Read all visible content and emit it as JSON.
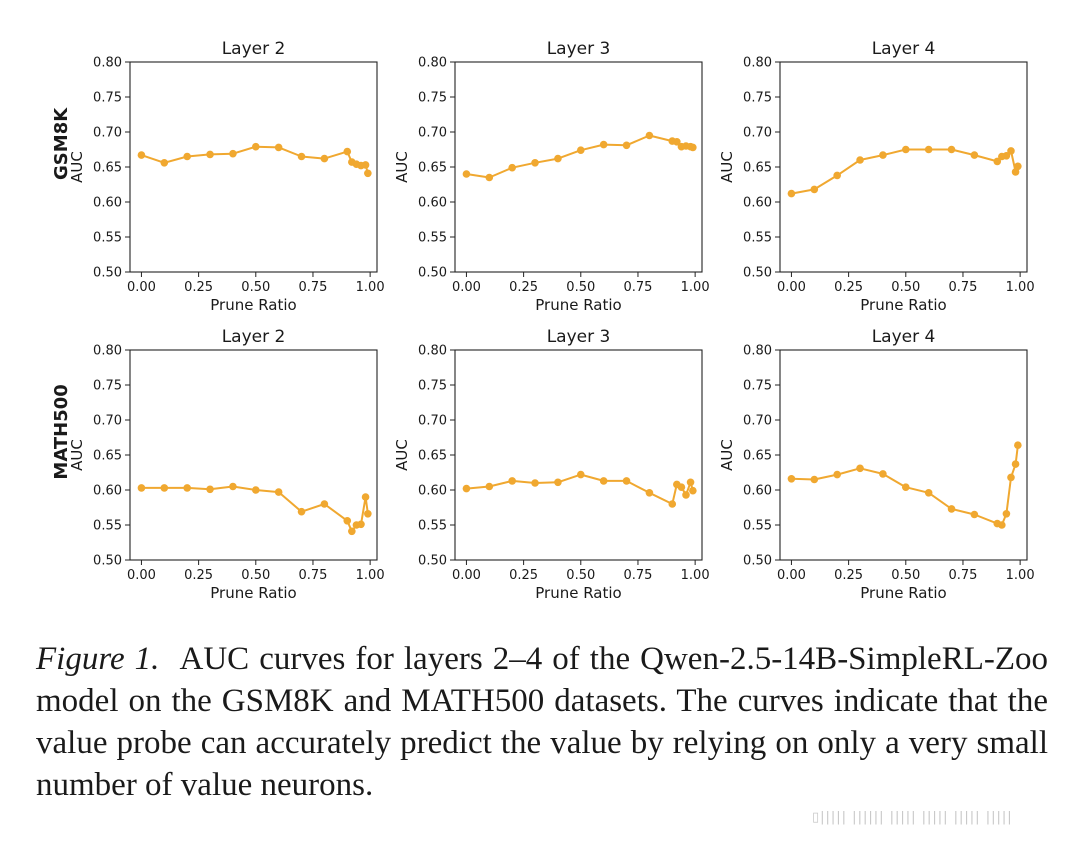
{
  "figure": {
    "caption_label": "Figure 1.",
    "caption_text": "AUC curves for layers 2–4 of the Qwen-2.5-14B-SimpleRL-Zoo model on the GSM8K and MATH500 datasets. The curves indicate that the value probe can accurately predict the value by relying on only a very small number of value neurons.",
    "watermark": "▯||||| |||||| ||||| ||||| ||||| |||||"
  },
  "colors": {
    "line": "#F0A830",
    "axis": "#222222"
  },
  "chart_data": [
    {
      "type": "line",
      "row": "GSM8K",
      "title": "Layer 2",
      "xlabel": "Prune Ratio",
      "ylabel": "AUC",
      "xlim": [
        -0.05,
        1.03
      ],
      "ylim": [
        0.5,
        0.8
      ],
      "xticks": [
        "0.00",
        "0.25",
        "0.50",
        "0.75",
        "1.00"
      ],
      "yticks": [
        "0.50",
        "0.55",
        "0.60",
        "0.65",
        "0.70",
        "0.75",
        "0.80"
      ],
      "x": [
        0.0,
        0.1,
        0.2,
        0.3,
        0.4,
        0.5,
        0.6,
        0.7,
        0.8,
        0.9,
        0.92,
        0.94,
        0.96,
        0.98,
        0.99
      ],
      "y": [
        0.667,
        0.656,
        0.665,
        0.668,
        0.669,
        0.679,
        0.678,
        0.665,
        0.662,
        0.672,
        0.657,
        0.654,
        0.652,
        0.653,
        0.641
      ]
    },
    {
      "type": "line",
      "row": "GSM8K",
      "title": "Layer 3",
      "xlabel": "Prune Ratio",
      "ylabel": "AUC",
      "xlim": [
        -0.05,
        1.03
      ],
      "ylim": [
        0.5,
        0.8
      ],
      "xticks": [
        "0.00",
        "0.25",
        "0.50",
        "0.75",
        "1.00"
      ],
      "yticks": [
        "0.50",
        "0.55",
        "0.60",
        "0.65",
        "0.70",
        "0.75",
        "0.80"
      ],
      "x": [
        0.0,
        0.1,
        0.2,
        0.3,
        0.4,
        0.5,
        0.6,
        0.7,
        0.8,
        0.9,
        0.92,
        0.94,
        0.96,
        0.98,
        0.99
      ],
      "y": [
        0.64,
        0.635,
        0.649,
        0.656,
        0.662,
        0.674,
        0.682,
        0.681,
        0.695,
        0.687,
        0.686,
        0.679,
        0.68,
        0.679,
        0.678
      ]
    },
    {
      "type": "line",
      "row": "GSM8K",
      "title": "Layer 4",
      "xlabel": "Prune Ratio",
      "ylabel": "AUC",
      "xlim": [
        -0.05,
        1.03
      ],
      "ylim": [
        0.5,
        0.8
      ],
      "xticks": [
        "0.00",
        "0.25",
        "0.50",
        "0.75",
        "1.00"
      ],
      "yticks": [
        "0.50",
        "0.55",
        "0.60",
        "0.65",
        "0.70",
        "0.75",
        "0.80"
      ],
      "x": [
        0.0,
        0.1,
        0.2,
        0.3,
        0.4,
        0.5,
        0.6,
        0.7,
        0.8,
        0.9,
        0.92,
        0.94,
        0.96,
        0.98,
        0.99
      ],
      "y": [
        0.612,
        0.618,
        0.638,
        0.66,
        0.667,
        0.675,
        0.675,
        0.675,
        0.667,
        0.658,
        0.665,
        0.666,
        0.673,
        0.643,
        0.651
      ]
    },
    {
      "type": "line",
      "row": "MATH500",
      "title": "Layer 2",
      "xlabel": "Prune Ratio",
      "ylabel": "AUC",
      "xlim": [
        -0.05,
        1.03
      ],
      "ylim": [
        0.5,
        0.8
      ],
      "xticks": [
        "0.00",
        "0.25",
        "0.50",
        "0.75",
        "1.00"
      ],
      "yticks": [
        "0.50",
        "0.55",
        "0.60",
        "0.65",
        "0.70",
        "0.75",
        "0.80"
      ],
      "x": [
        0.0,
        0.1,
        0.2,
        0.3,
        0.4,
        0.5,
        0.6,
        0.7,
        0.8,
        0.9,
        0.92,
        0.94,
        0.96,
        0.98,
        0.99
      ],
      "y": [
        0.603,
        0.603,
        0.603,
        0.601,
        0.605,
        0.6,
        0.597,
        0.569,
        0.58,
        0.556,
        0.541,
        0.55,
        0.551,
        0.59,
        0.566
      ]
    },
    {
      "type": "line",
      "row": "MATH500",
      "title": "Layer 3",
      "xlabel": "Prune Ratio",
      "ylabel": "AUC",
      "xlim": [
        -0.05,
        1.03
      ],
      "ylim": [
        0.5,
        0.8
      ],
      "xticks": [
        "0.00",
        "0.25",
        "0.50",
        "0.75",
        "1.00"
      ],
      "yticks": [
        "0.50",
        "0.55",
        "0.60",
        "0.65",
        "0.70",
        "0.75",
        "0.80"
      ],
      "x": [
        0.0,
        0.1,
        0.2,
        0.3,
        0.4,
        0.5,
        0.6,
        0.7,
        0.8,
        0.9,
        0.92,
        0.94,
        0.96,
        0.98,
        0.99
      ],
      "y": [
        0.602,
        0.605,
        0.613,
        0.61,
        0.611,
        0.622,
        0.613,
        0.613,
        0.596,
        0.58,
        0.608,
        0.604,
        0.593,
        0.611,
        0.599
      ]
    },
    {
      "type": "line",
      "row": "MATH500",
      "title": "Layer 4",
      "xlabel": "Prune Ratio",
      "ylabel": "AUC",
      "xlim": [
        -0.05,
        1.03
      ],
      "ylim": [
        0.5,
        0.8
      ],
      "xticks": [
        "0.00",
        "0.25",
        "0.50",
        "0.75",
        "1.00"
      ],
      "yticks": [
        "0.50",
        "0.55",
        "0.60",
        "0.65",
        "0.70",
        "0.75",
        "0.80"
      ],
      "x": [
        0.0,
        0.1,
        0.2,
        0.3,
        0.4,
        0.5,
        0.6,
        0.7,
        0.8,
        0.9,
        0.92,
        0.94,
        0.96,
        0.98,
        0.99
      ],
      "y": [
        0.616,
        0.615,
        0.622,
        0.631,
        0.623,
        0.604,
        0.596,
        0.573,
        0.565,
        0.552,
        0.55,
        0.566,
        0.618,
        0.637,
        0.664
      ]
    }
  ]
}
